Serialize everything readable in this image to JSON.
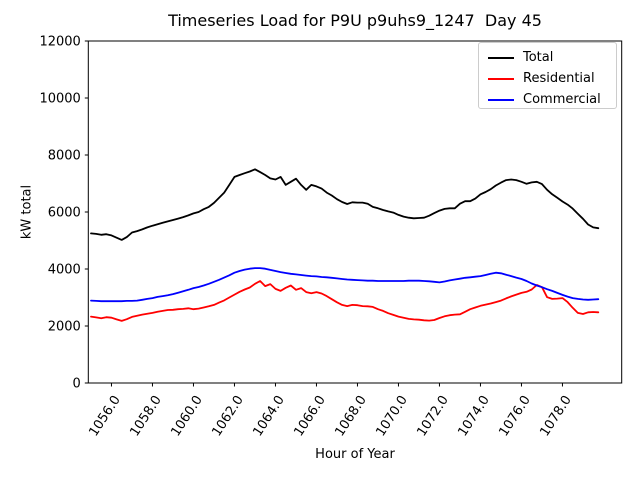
{
  "chart_data": {
    "type": "line",
    "title": "Timeseries Load for P9U p9uhs9_1247  Day 45",
    "xlabel": "Hour of Year",
    "ylabel": "kW total",
    "xlim": [
      1054.87,
      1080.89
    ],
    "ylim": [
      0,
      12000
    ],
    "grid": false,
    "legend_position": "upper right",
    "yticks": {
      "values": [
        0,
        2000,
        4000,
        6000,
        8000,
        10000,
        12000
      ],
      "labels": [
        "0",
        "2000",
        "4000",
        "6000",
        "8000",
        "10000",
        "12000"
      ]
    },
    "xticks": {
      "values": [
        1056,
        1058,
        1060,
        1062,
        1064,
        1066,
        1068,
        1070,
        1072,
        1074,
        1076,
        1078
      ],
      "labels": [
        "1056.0",
        "1058.0",
        "1060.0",
        "1062.0",
        "1064.0",
        "1066.0",
        "1068.0",
        "1070.0",
        "1072.0",
        "1074.0",
        "1076.0",
        "1078.0"
      ]
    },
    "x_start": 1055.0,
    "x_step": 0.25,
    "series": [
      {
        "name": "Total",
        "color": "#000000",
        "values": [
          5250,
          5230,
          5200,
          5220,
          5180,
          5100,
          5020,
          5120,
          5280,
          5330,
          5390,
          5460,
          5520,
          5570,
          5620,
          5670,
          5720,
          5770,
          5820,
          5880,
          5950,
          6000,
          6100,
          6180,
          6320,
          6500,
          6680,
          6950,
          7230,
          7300,
          7360,
          7420,
          7500,
          7400,
          7300,
          7180,
          7140,
          7230,
          6950,
          7060,
          7170,
          6950,
          6780,
          6950,
          6900,
          6820,
          6680,
          6580,
          6450,
          6350,
          6280,
          6340,
          6330,
          6330,
          6290,
          6180,
          6130,
          6070,
          6020,
          5980,
          5900,
          5840,
          5800,
          5780,
          5790,
          5800,
          5870,
          5960,
          6050,
          6110,
          6130,
          6130,
          6290,
          6380,
          6380,
          6470,
          6620,
          6700,
          6800,
          6930,
          7030,
          7120,
          7140,
          7120,
          7060,
          6990,
          7040,
          7060,
          6980,
          6780,
          6620,
          6500,
          6370,
          6260,
          6120,
          5940,
          5760,
          5560,
          5460,
          5430
        ]
      },
      {
        "name": "Residential",
        "color": "#ff0000",
        "values": [
          2330,
          2300,
          2270,
          2310,
          2290,
          2230,
          2180,
          2240,
          2320,
          2360,
          2400,
          2430,
          2460,
          2500,
          2530,
          2560,
          2570,
          2590,
          2600,
          2620,
          2590,
          2610,
          2650,
          2690,
          2740,
          2820,
          2900,
          3000,
          3100,
          3200,
          3280,
          3350,
          3480,
          3580,
          3400,
          3470,
          3300,
          3230,
          3340,
          3420,
          3270,
          3330,
          3190,
          3150,
          3190,
          3140,
          3050,
          2940,
          2830,
          2740,
          2700,
          2740,
          2730,
          2700,
          2690,
          2670,
          2590,
          2530,
          2450,
          2390,
          2330,
          2290,
          2250,
          2230,
          2220,
          2200,
          2190,
          2210,
          2280,
          2340,
          2380,
          2400,
          2410,
          2500,
          2590,
          2650,
          2710,
          2750,
          2790,
          2840,
          2890,
          2970,
          3040,
          3100,
          3160,
          3200,
          3280,
          3440,
          3360,
          3010,
          2950,
          2960,
          2980,
          2840,
          2640,
          2460,
          2420,
          2480,
          2490,
          2480
        ]
      },
      {
        "name": "Commercial",
        "color": "#0000ff",
        "values": [
          2890,
          2880,
          2870,
          2870,
          2870,
          2870,
          2870,
          2880,
          2880,
          2890,
          2920,
          2950,
          2980,
          3020,
          3050,
          3080,
          3120,
          3170,
          3220,
          3270,
          3330,
          3370,
          3420,
          3480,
          3550,
          3620,
          3700,
          3780,
          3870,
          3930,
          3980,
          4010,
          4030,
          4030,
          4010,
          3970,
          3930,
          3890,
          3860,
          3830,
          3810,
          3790,
          3770,
          3750,
          3740,
          3720,
          3710,
          3690,
          3670,
          3650,
          3630,
          3620,
          3610,
          3600,
          3590,
          3590,
          3580,
          3580,
          3580,
          3580,
          3580,
          3580,
          3590,
          3590,
          3590,
          3580,
          3570,
          3550,
          3530,
          3560,
          3600,
          3630,
          3660,
          3690,
          3710,
          3730,
          3750,
          3790,
          3830,
          3870,
          3850,
          3800,
          3750,
          3700,
          3650,
          3580,
          3490,
          3420,
          3360,
          3290,
          3230,
          3160,
          3090,
          3030,
          2980,
          2950,
          2930,
          2920,
          2930,
          2940
        ]
      }
    ]
  }
}
